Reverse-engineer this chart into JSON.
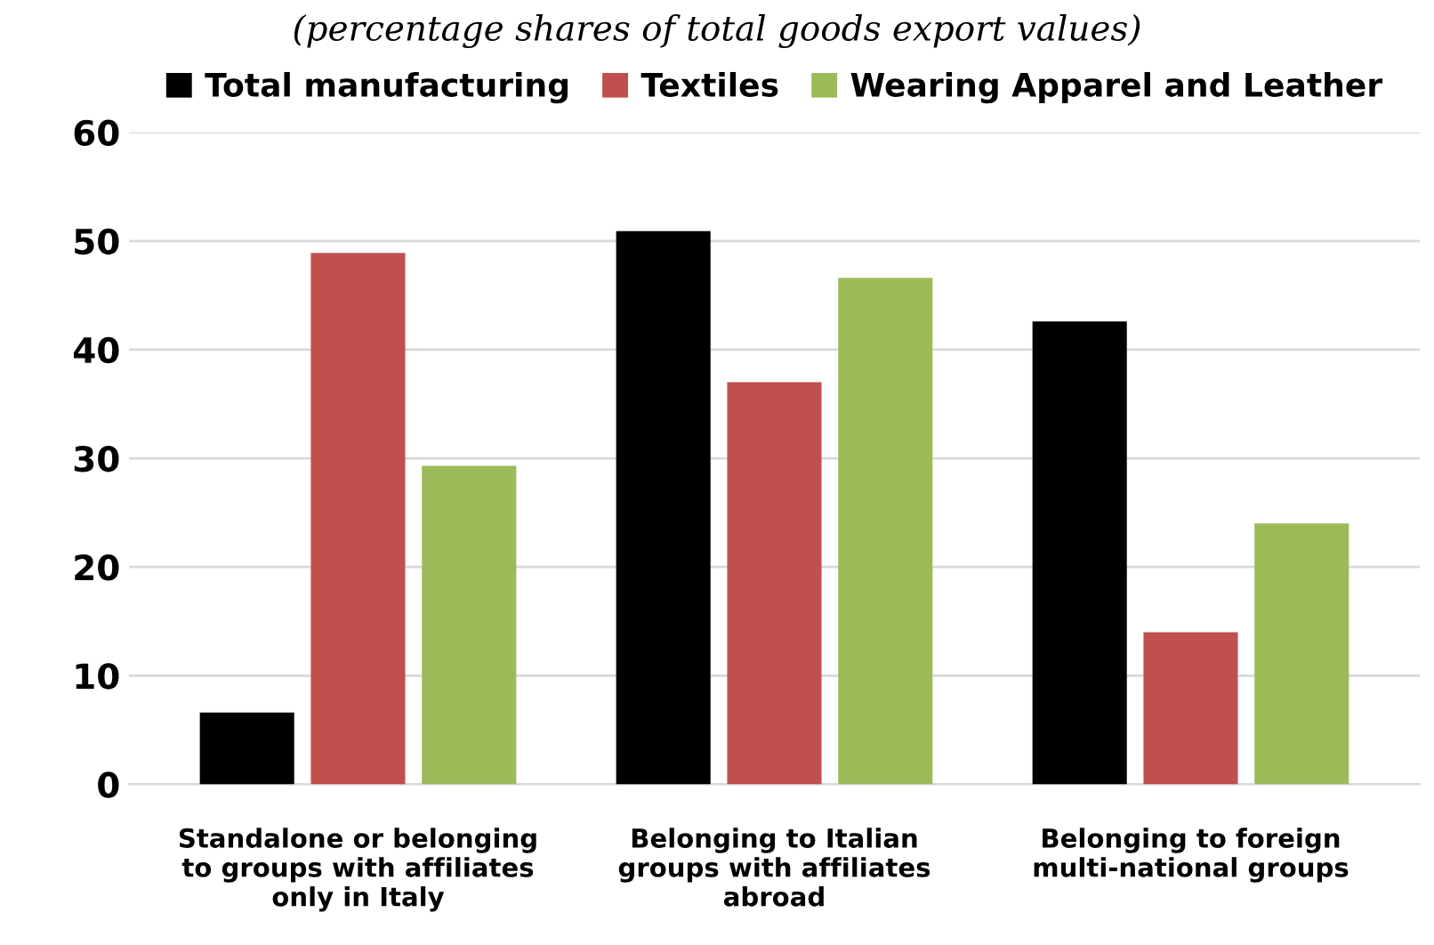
{
  "chart_data": {
    "type": "bar",
    "subtitle": "(percentage shares of total goods export values)",
    "categories": [
      "Standalone or belonging to groups with affiliates only in Italy",
      "Belonging to Italian groups with affiliates abroad",
      "Belonging to foreign multi-national groups"
    ],
    "series": [
      {
        "name": "Total manufacturing",
        "color": "#000000",
        "values": [
          6.6,
          50.9,
          42.6
        ]
      },
      {
        "name": "Textiles",
        "color": "#c0504d",
        "values": [
          48.9,
          37.0,
          14.0
        ]
      },
      {
        "name": "Wearing Apparel and Leather",
        "color": "#9bbb59",
        "values": [
          29.3,
          46.6,
          24.0
        ]
      }
    ],
    "ylim": [
      0,
      60
    ],
    "yticks": [
      0,
      10,
      20,
      30,
      40,
      50,
      60
    ],
    "grid": "y",
    "legend": "top"
  }
}
